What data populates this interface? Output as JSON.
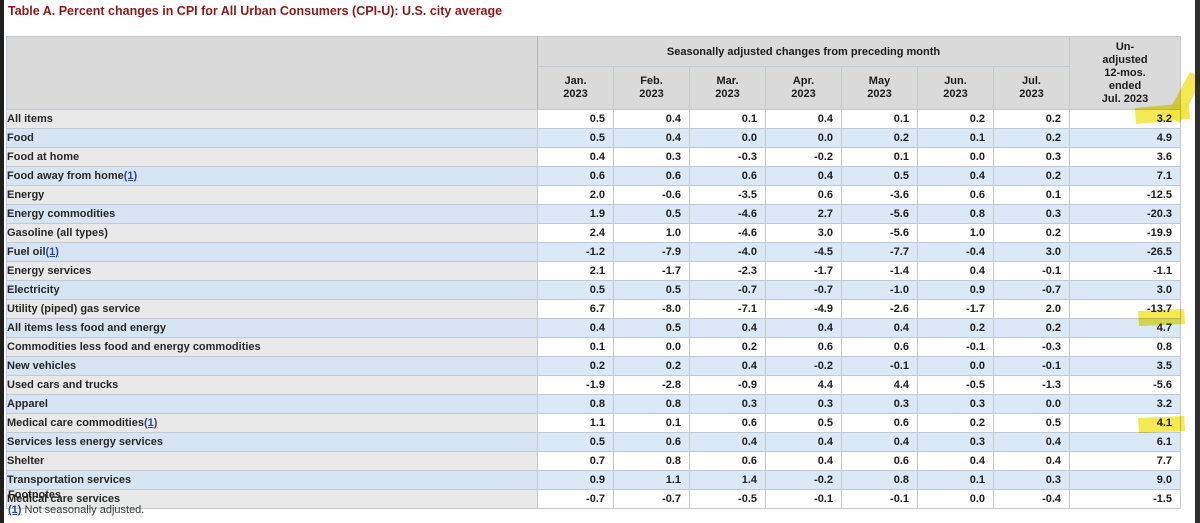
{
  "page": {
    "title": "Table A. Percent changes in CPI for All Urban Consumers (CPI-U): U.S. city average"
  },
  "table": {
    "group_header": "Seasonally adjusted changes from preceding month",
    "columns": [
      {
        "label": "Jan.\n2023"
      },
      {
        "label": "Feb.\n2023"
      },
      {
        "label": "Mar.\n2023"
      },
      {
        "label": "Apr.\n2023"
      },
      {
        "label": "May\n2023"
      },
      {
        "label": "Jun.\n2023"
      },
      {
        "label": "Jul.\n2023"
      }
    ],
    "unadjusted_header": "Un-\nadjusted\n12-mos.\nended\nJul. 2023",
    "rows": [
      {
        "label": "All items",
        "indent": 0,
        "values": [
          "0.5",
          "0.4",
          "0.1",
          "0.4",
          "0.1",
          "0.2",
          "0.2"
        ],
        "annual": "3.2",
        "highlight": true
      },
      {
        "label": "Food",
        "indent": 1,
        "values": [
          "0.5",
          "0.4",
          "0.0",
          "0.0",
          "0.2",
          "0.1",
          "0.2"
        ],
        "annual": "4.9",
        "highlight": false
      },
      {
        "label": "Food at home",
        "indent": 2,
        "values": [
          "0.4",
          "0.3",
          "-0.3",
          "-0.2",
          "0.1",
          "0.0",
          "0.3"
        ],
        "annual": "3.6",
        "highlight": false
      },
      {
        "label": "Food away from home",
        "footnote_ref": "(1)",
        "indent": 2,
        "values": [
          "0.6",
          "0.6",
          "0.6",
          "0.4",
          "0.5",
          "0.4",
          "0.2"
        ],
        "annual": "7.1",
        "highlight": false
      },
      {
        "label": "Energy",
        "indent": 1,
        "values": [
          "2.0",
          "-0.6",
          "-3.5",
          "0.6",
          "-3.6",
          "0.6",
          "0.1"
        ],
        "annual": "-12.5",
        "highlight": false
      },
      {
        "label": "Energy commodities",
        "indent": 2,
        "values": [
          "1.9",
          "0.5",
          "-4.6",
          "2.7",
          "-5.6",
          "0.8",
          "0.3"
        ],
        "annual": "-20.3",
        "highlight": false
      },
      {
        "label": "Gasoline (all types)",
        "indent": 3,
        "values": [
          "2.4",
          "1.0",
          "-4.6",
          "3.0",
          "-5.6",
          "1.0",
          "0.2"
        ],
        "annual": "-19.9",
        "highlight": false
      },
      {
        "label": "Fuel oil",
        "footnote_ref": "(1)",
        "indent": 3,
        "values": [
          "-1.2",
          "-7.9",
          "-4.0",
          "-4.5",
          "-7.7",
          "-0.4",
          "3.0"
        ],
        "annual": "-26.5",
        "highlight": false
      },
      {
        "label": "Energy services",
        "indent": 2,
        "values": [
          "2.1",
          "-1.7",
          "-2.3",
          "-1.7",
          "-1.4",
          "0.4",
          "-0.1"
        ],
        "annual": "-1.1",
        "highlight": false
      },
      {
        "label": "Electricity",
        "indent": 3,
        "values": [
          "0.5",
          "0.5",
          "-0.7",
          "-0.7",
          "-1.0",
          "0.9",
          "-0.7"
        ],
        "annual": "3.0",
        "highlight": false
      },
      {
        "label": "Utility (piped) gas service",
        "indent": 3,
        "values": [
          "6.7",
          "-8.0",
          "-7.1",
          "-4.9",
          "-2.6",
          "-1.7",
          "2.0"
        ],
        "annual": "-13.7",
        "highlight": false
      },
      {
        "label": "All items less food and energy",
        "indent": 1,
        "values": [
          "0.4",
          "0.5",
          "0.4",
          "0.4",
          "0.4",
          "0.2",
          "0.2"
        ],
        "annual": "4.7",
        "highlight": true
      },
      {
        "label": "Commodities less food and energy commodities",
        "indent": 2,
        "values": [
          "0.1",
          "0.0",
          "0.2",
          "0.6",
          "0.6",
          "-0.1",
          "-0.3"
        ],
        "annual": "0.8",
        "highlight": false
      },
      {
        "label": "New vehicles",
        "indent": 3,
        "values": [
          "0.2",
          "0.2",
          "0.4",
          "-0.2",
          "-0.1",
          "0.0",
          "-0.1"
        ],
        "annual": "3.5",
        "highlight": false
      },
      {
        "label": "Used cars and trucks",
        "indent": 3,
        "values": [
          "-1.9",
          "-2.8",
          "-0.9",
          "4.4",
          "4.4",
          "-0.5",
          "-1.3"
        ],
        "annual": "-5.6",
        "highlight": false
      },
      {
        "label": "Apparel",
        "indent": 3,
        "values": [
          "0.8",
          "0.8",
          "0.3",
          "0.3",
          "0.3",
          "0.3",
          "0.0"
        ],
        "annual": "3.2",
        "highlight": false
      },
      {
        "label": "Medical care commodities",
        "footnote_ref": "(1)",
        "indent": 3,
        "values": [
          "1.1",
          "0.1",
          "0.6",
          "0.5",
          "0.6",
          "0.2",
          "0.5"
        ],
        "annual": "4.1",
        "highlight": false
      },
      {
        "label": "Services less energy services",
        "indent": 2,
        "values": [
          "0.5",
          "0.6",
          "0.4",
          "0.4",
          "0.4",
          "0.3",
          "0.4"
        ],
        "annual": "6.1",
        "highlight": true
      },
      {
        "label": "Shelter",
        "indent": 3,
        "values": [
          "0.7",
          "0.8",
          "0.6",
          "0.4",
          "0.6",
          "0.4",
          "0.4"
        ],
        "annual": "7.7",
        "highlight": false
      },
      {
        "label": "Transportation services",
        "indent": 3,
        "values": [
          "0.9",
          "1.1",
          "1.4",
          "-0.2",
          "0.8",
          "0.1",
          "0.3"
        ],
        "annual": "9.0",
        "highlight": false
      },
      {
        "label": "Medical care services",
        "indent": 3,
        "values": [
          "-0.7",
          "-0.7",
          "-0.5",
          "-0.1",
          "-0.1",
          "0.0",
          "-0.4"
        ],
        "annual": "-1.5",
        "highlight": false
      }
    ]
  },
  "footnotes": {
    "heading": "Footnotes",
    "items": [
      {
        "ref": "(1)",
        "text": " Not seasonally adjusted."
      }
    ]
  },
  "colors": {
    "title_red": "#8a1a1a",
    "highlight_yellow": "#f2e53c",
    "row_blue": "#dbe8f8",
    "row_gray": "#e9e9e9",
    "header_gray": "#dadada",
    "link_blue": "#28499c"
  }
}
